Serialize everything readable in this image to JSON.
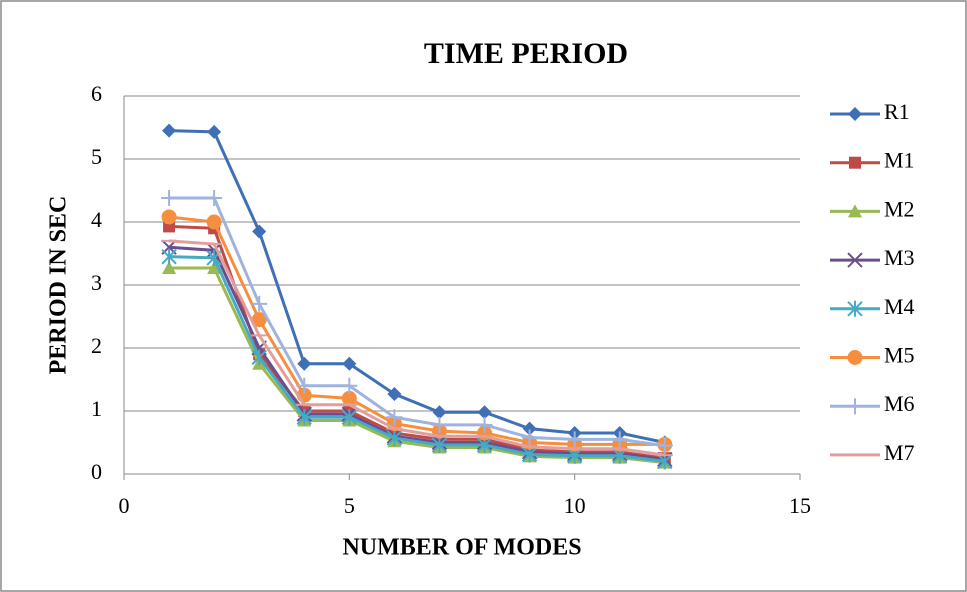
{
  "chart_data": {
    "type": "line",
    "title": "TIME PERIOD",
    "xlabel": "NUMBER OF MODES",
    "ylabel": "PERIOD IN SEC",
    "x": [
      1,
      2,
      3,
      4,
      5,
      6,
      7,
      8,
      9,
      10,
      11,
      12
    ],
    "xlim": [
      0,
      15
    ],
    "xticks": [
      0,
      5,
      10,
      15
    ],
    "ylim": [
      0,
      6
    ],
    "yticks": [
      0,
      1,
      2,
      3,
      4,
      5,
      6
    ],
    "grid": true,
    "legend": "right",
    "series": [
      {
        "name": "R1",
        "color": "#3f6fb5",
        "marker": "diamond",
        "values": [
          5.45,
          5.43,
          3.85,
          1.75,
          1.75,
          1.27,
          0.98,
          0.98,
          0.72,
          0.65,
          0.65,
          0.5
        ]
      },
      {
        "name": "M1",
        "color": "#be4b48",
        "marker": "square",
        "values": [
          3.93,
          3.9,
          1.9,
          1.0,
          1.0,
          0.65,
          0.55,
          0.55,
          0.38,
          0.35,
          0.35,
          0.25
        ]
      },
      {
        "name": "M2",
        "color": "#98b954",
        "marker": "triangle",
        "values": [
          3.27,
          3.27,
          1.75,
          0.85,
          0.85,
          0.52,
          0.42,
          0.42,
          0.28,
          0.26,
          0.26,
          0.18
        ]
      },
      {
        "name": "M3",
        "color": "#6a4e8f",
        "marker": "x",
        "values": [
          3.6,
          3.55,
          2.0,
          0.95,
          0.95,
          0.6,
          0.5,
          0.5,
          0.35,
          0.32,
          0.32,
          0.23
        ]
      },
      {
        "name": "M4",
        "color": "#46aac5",
        "marker": "asterisk",
        "values": [
          3.45,
          3.43,
          1.85,
          0.9,
          0.9,
          0.57,
          0.46,
          0.46,
          0.31,
          0.29,
          0.29,
          0.2
        ]
      },
      {
        "name": "M5",
        "color": "#f58f3f",
        "marker": "circle",
        "values": [
          4.08,
          4.0,
          2.45,
          1.25,
          1.2,
          0.8,
          0.68,
          0.65,
          0.5,
          0.47,
          0.47,
          0.47
        ]
      },
      {
        "name": "M6",
        "color": "#9fb3de",
        "marker": "plus",
        "values": [
          4.38,
          4.38,
          2.7,
          1.4,
          1.4,
          0.9,
          0.78,
          0.78,
          0.58,
          0.55,
          0.55,
          0.45
        ]
      },
      {
        "name": "M7",
        "color": "#e39e9c",
        "marker": "dash",
        "values": [
          3.7,
          3.65,
          2.2,
          1.1,
          1.1,
          0.72,
          0.6,
          0.6,
          0.43,
          0.4,
          0.4,
          0.3
        ]
      }
    ]
  }
}
